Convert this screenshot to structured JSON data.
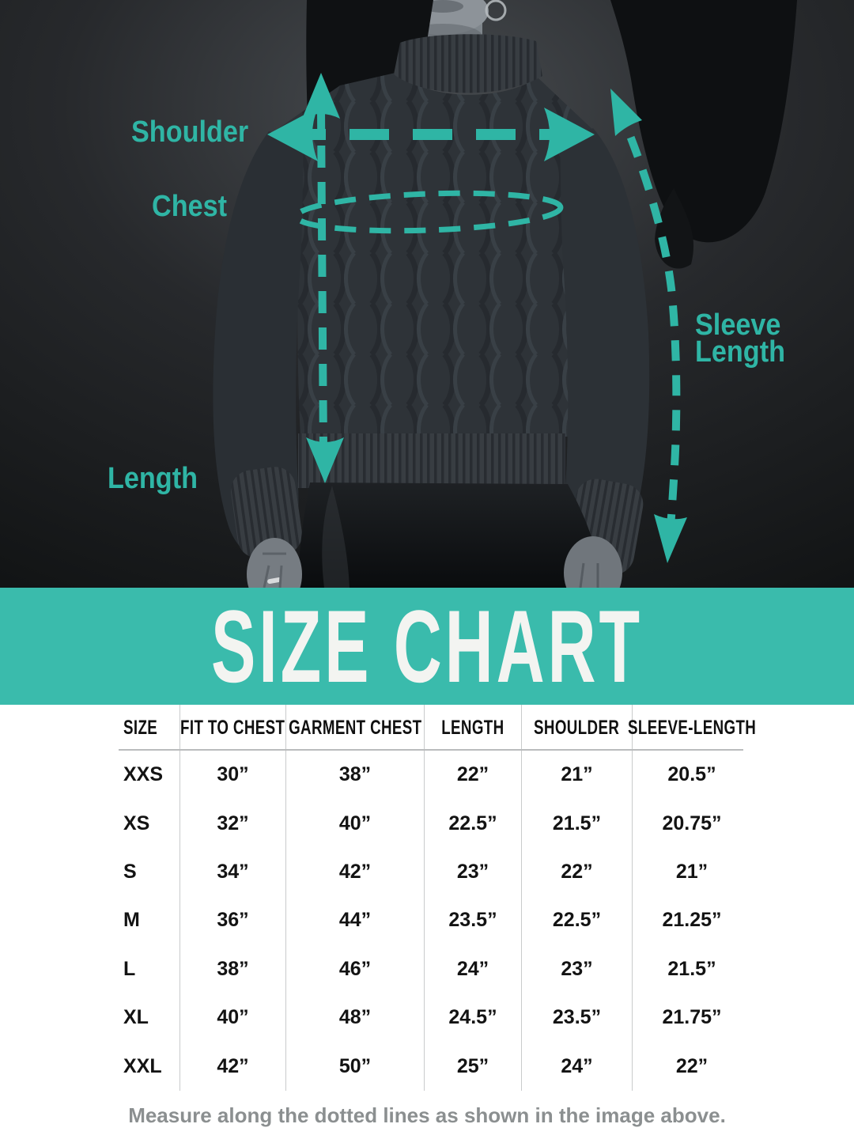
{
  "photo": {
    "description_colors": {
      "annotation_teal": "#2fb5a5",
      "background_dark": "#1d2022",
      "sweater_charcoal": "#2e3338"
    },
    "measurement_labels": {
      "shoulder": "Shoulder",
      "chest": "Chest",
      "length": "Length",
      "sleeve_line1": "Sleeve",
      "sleeve_line2": "Length"
    }
  },
  "banner": {
    "title": "SIZE CHART",
    "background_color": "#3abbac",
    "text_color": "#f3f4f1"
  },
  "chart_data": {
    "type": "table",
    "title": "SIZE CHART",
    "columns": [
      "SIZE",
      "FIT TO CHEST",
      "GARMENT CHEST",
      "LENGTH",
      "SHOULDER",
      "SLEEVE-LENGTH"
    ],
    "rows": [
      [
        "XXS",
        "30”",
        "38”",
        "22”",
        "21”",
        "20.5”"
      ],
      [
        "XS",
        "32”",
        "40”",
        "22.5”",
        "21.5”",
        "20.75”"
      ],
      [
        "S",
        "34”",
        "42”",
        "23”",
        "22”",
        "21”"
      ],
      [
        "M",
        "36”",
        "44”",
        "23.5”",
        "22.5”",
        "21.25”"
      ],
      [
        "L",
        "38”",
        "46”",
        "24”",
        "23”",
        "21.5”"
      ],
      [
        "XL",
        "40”",
        "48”",
        "24.5”",
        "23.5”",
        "21.75”"
      ],
      [
        "XXL",
        "42”",
        "50”",
        "25”",
        "24”",
        "22”"
      ]
    ],
    "note": "Measure along the dotted lines as shown in the image above."
  }
}
